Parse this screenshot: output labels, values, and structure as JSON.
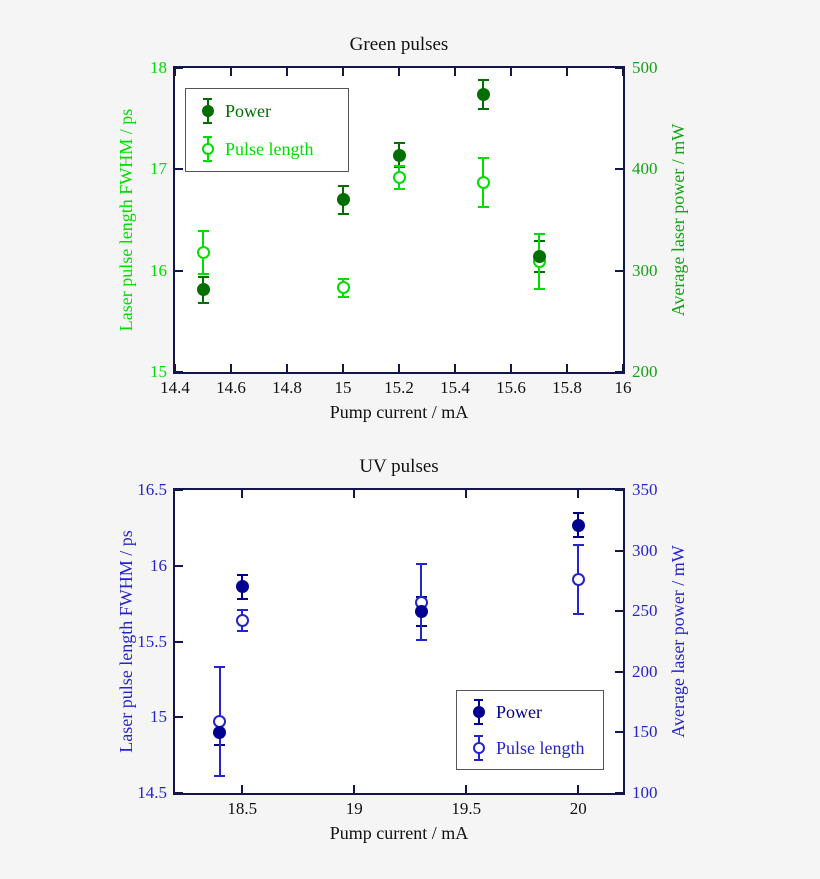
{
  "page": {
    "background": "#f5f5f5",
    "frame_color": "#15154d"
  },
  "chart_data": [
    {
      "type": "scatter",
      "title": "Green pulses",
      "xlabel": "Pump current / mA",
      "ylabel_left": "Laser pulse length FWHM / ps",
      "ylabel_right": "Average laser power / mW",
      "xlim": [
        14.4,
        16
      ],
      "ylim_left": [
        15,
        18
      ],
      "ylim_right": [
        200,
        500
      ],
      "grid": false,
      "xticks": [
        [
          14.4,
          "14.4"
        ],
        [
          14.6,
          "14.6"
        ],
        [
          14.8,
          "14.8"
        ],
        [
          15,
          "15"
        ],
        [
          15.2,
          "15.2"
        ],
        [
          15.4,
          "15.4"
        ],
        [
          15.6,
          "15.6"
        ],
        [
          15.8,
          "15.8"
        ],
        [
          16,
          "16"
        ]
      ],
      "yticks_left": [
        [
          15,
          "15"
        ],
        [
          16,
          "16"
        ],
        [
          17,
          "17"
        ],
        [
          18,
          "18"
        ]
      ],
      "yticks_right": [
        [
          200,
          "200"
        ],
        [
          300,
          "300"
        ],
        [
          400,
          "400"
        ],
        [
          500,
          "500"
        ]
      ],
      "colors": {
        "frame": "#15154d",
        "title": "#111111",
        "xaxis": "#111111",
        "left_axis": "#00dd00",
        "right_axis": "#12a312"
      },
      "legend": {
        "position": "upper-left",
        "items": [
          "Power",
          "Pulse length"
        ]
      },
      "series": [
        {
          "name": "Power",
          "axis": "right",
          "units": "mW",
          "marker": "filled",
          "color": "#006f00",
          "x": [
            14.5,
            15.0,
            15.2,
            15.5,
            15.7
          ],
          "y": [
            281,
            370,
            414,
            474,
            314
          ],
          "yerr": [
            13,
            14,
            12,
            14,
            15
          ]
        },
        {
          "name": "Pulse length",
          "axis": "left",
          "units": "ps",
          "marker": "open",
          "color": "#00dd00",
          "x": [
            14.5,
            15.0,
            15.2,
            15.5,
            15.7
          ],
          "y": [
            16.18,
            15.83,
            16.92,
            16.87,
            16.09
          ],
          "yerr": [
            0.21,
            0.09,
            0.11,
            0.24,
            0.27
          ]
        }
      ]
    },
    {
      "type": "scatter",
      "title": "UV pulses",
      "xlabel": "Pump current / mA",
      "ylabel_left": "Laser pulse length FWHM / ps",
      "ylabel_right": "Average laser power / mW",
      "xlim": [
        18.2,
        20.2
      ],
      "ylim_left": [
        14.5,
        16.5
      ],
      "ylim_right": [
        100,
        350
      ],
      "grid": false,
      "xticks": [
        [
          18.5,
          "18.5"
        ],
        [
          19,
          "19"
        ],
        [
          19.5,
          "19.5"
        ],
        [
          20,
          "20"
        ]
      ],
      "yticks_left": [
        [
          14.5,
          "14.5"
        ],
        [
          15,
          "15"
        ],
        [
          15.5,
          "15.5"
        ],
        [
          16,
          "16"
        ],
        [
          16.5,
          "16.5"
        ]
      ],
      "yticks_right": [
        [
          100,
          "100"
        ],
        [
          150,
          "150"
        ],
        [
          200,
          "200"
        ],
        [
          250,
          "250"
        ],
        [
          300,
          "300"
        ],
        [
          350,
          "350"
        ]
      ],
      "colors": {
        "frame": "#15154d",
        "title": "#111111",
        "xaxis": "#111111",
        "left_axis": "#2424cc",
        "right_axis": "#2424cc"
      },
      "legend": {
        "position": "lower-right",
        "items": [
          "Power",
          "Pulse length"
        ]
      },
      "series": [
        {
          "name": "Power",
          "axis": "right",
          "units": "mW",
          "marker": "filled",
          "color": "#000090",
          "x": [
            18.4,
            18.5,
            19.3,
            20.0
          ],
          "y": [
            150,
            270,
            250,
            321
          ],
          "yerr": [
            10,
            10,
            12,
            10
          ]
        },
        {
          "name": "Pulse length",
          "axis": "left",
          "units": "ps",
          "marker": "open",
          "color": "#2424cc",
          "x": [
            18.4,
            18.5,
            19.3,
            20.0
          ],
          "y": [
            14.97,
            15.64,
            15.76,
            15.91
          ],
          "yerr": [
            0.36,
            0.07,
            0.25,
            0.23
          ]
        }
      ]
    }
  ]
}
